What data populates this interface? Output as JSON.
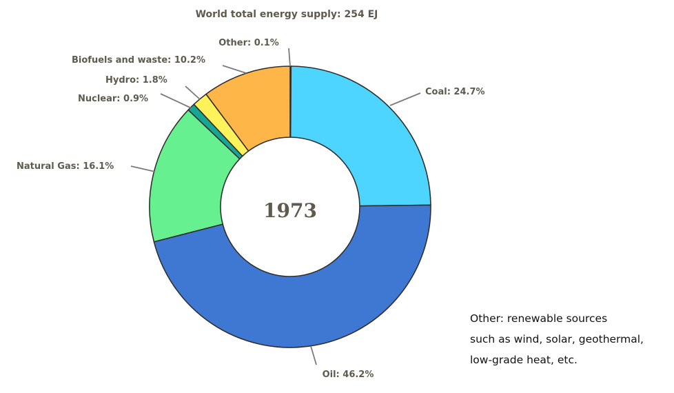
{
  "chart_data": {
    "type": "pie",
    "title": "World total energy supply: 254 EJ",
    "center_label": "1973",
    "slices": [
      {
        "label": "Other",
        "value": 0.1,
        "color": "#7a7a7a",
        "label_text": "Other:  0.1%"
      },
      {
        "label": "Coal",
        "value": 24.7,
        "color": "#4dd4ff",
        "label_text": "Coal: 24.7%"
      },
      {
        "label": "Oil",
        "value": 46.2,
        "color": "#3f78d3",
        "label_text": "Oil: 46.2%"
      },
      {
        "label": "Natural Gas",
        "value": 16.1,
        "color": "#66f08f",
        "label_text": "Natural  Gas:  16.1%"
      },
      {
        "label": "Nuclear",
        "value": 0.9,
        "color": "#17a694",
        "label_text": "Nuclear: 0.9%"
      },
      {
        "label": "Hydro",
        "value": 1.8,
        "color": "#fff25a",
        "label_text": "Hydro:  1.8%"
      },
      {
        "label": "Biofuels and waste",
        "value": 10.2,
        "color": "#ffb648",
        "label_text": "Biofuels and waste: 10.2%"
      }
    ],
    "legend": "none",
    "donut": true
  },
  "footnote": {
    "lines": [
      "Other: renewable sources",
      "such as wind, solar, geothermal,",
      "low-grade heat, etc."
    ]
  }
}
